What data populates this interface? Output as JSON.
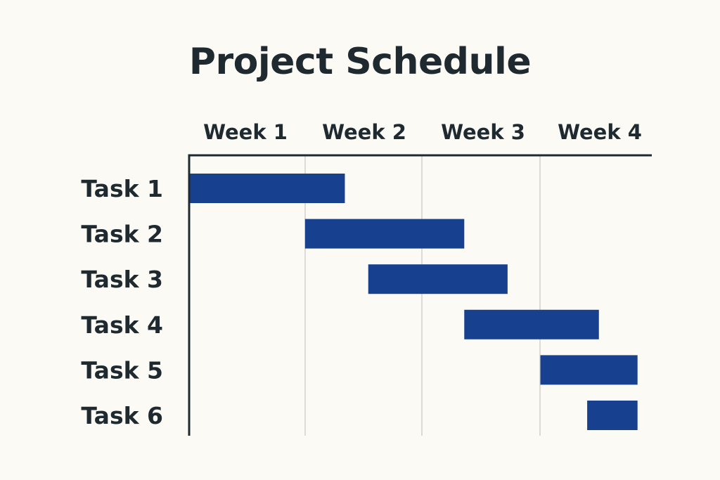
{
  "chart_data": {
    "type": "bar",
    "orientation": "horizontal",
    "subtype": "gantt",
    "title": "Project Schedule",
    "column_labels": [
      "Week 1",
      "Week 2",
      "Week 3",
      "Week 4"
    ],
    "tasks": [
      {
        "label": "Task 1",
        "start_week": 0.0,
        "end_week": 1.33
      },
      {
        "label": "Task 2",
        "start_week": 0.99,
        "end_week": 2.35
      },
      {
        "label": "Task 3",
        "start_week": 1.53,
        "end_week": 2.72
      },
      {
        "label": "Task 4",
        "start_week": 2.35,
        "end_week": 3.5
      },
      {
        "label": "Task 5",
        "start_week": 3.0,
        "end_week": 3.83
      },
      {
        "label": "Task 6",
        "start_week": 3.4,
        "end_week": 3.83
      }
    ],
    "xlim": [
      0,
      4
    ],
    "grid": true,
    "colors": {
      "bar": "#17408f",
      "axis": "#1f2a30",
      "grid": "#dddbd3",
      "background": "#fbfaf5"
    }
  }
}
